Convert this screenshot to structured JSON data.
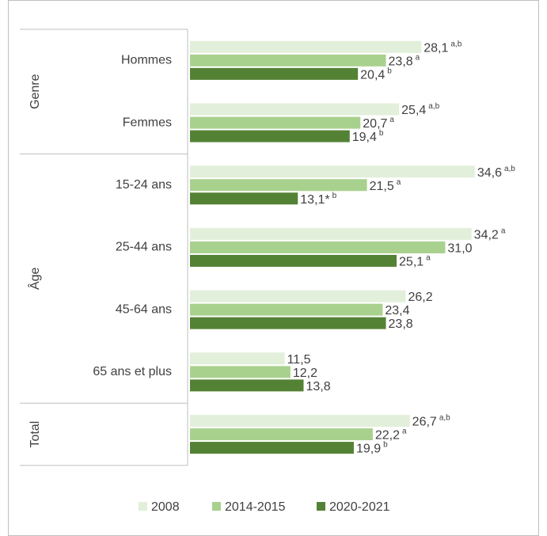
{
  "chart_data": {
    "type": "bar",
    "orientation": "horizontal",
    "groups": [
      {
        "name": "Genre",
        "categories": [
          "Hommes",
          "Femmes"
        ]
      },
      {
        "name": "Âge",
        "categories": [
          "15-24 ans",
          "25-44 ans",
          "45-64 ans",
          "65 ans et plus"
        ]
      },
      {
        "name": "Total",
        "categories": [
          null
        ]
      }
    ],
    "series": [
      {
        "name": "2008",
        "color": "#e2efda",
        "values": [
          28.1,
          25.4,
          34.6,
          34.2,
          26.2,
          11.5,
          26.7
        ],
        "value_labels": [
          "28,1",
          "25,4",
          "34,6",
          "34,2",
          "26,2",
          "11,5",
          "26,7"
        ],
        "value_notes": [
          "a,b",
          "a,b",
          "a,b",
          "a",
          null,
          null,
          "a,b"
        ]
      },
      {
        "name": "2014-2015",
        "color": "#a9d18e",
        "values": [
          23.8,
          20.7,
          21.5,
          31.0,
          23.4,
          12.2,
          22.2
        ],
        "value_labels": [
          "23,8",
          "20,7",
          "21,5",
          "31,0",
          "23,4",
          "12,2",
          "22,2"
        ],
        "value_notes": [
          "a",
          "a",
          "a",
          null,
          null,
          null,
          "a"
        ]
      },
      {
        "name": "2020-2021",
        "color": "#548235",
        "values": [
          20.4,
          19.4,
          13.1,
          25.1,
          23.8,
          13.8,
          19.9
        ],
        "value_labels": [
          "20,4",
          "19,4",
          "13,1*",
          "25,1",
          "23,8",
          "13,8",
          "19,9"
        ],
        "value_notes": [
          "b",
          "b",
          "b",
          "a",
          null,
          null,
          "b"
        ]
      }
    ],
    "legend": "bottom"
  }
}
